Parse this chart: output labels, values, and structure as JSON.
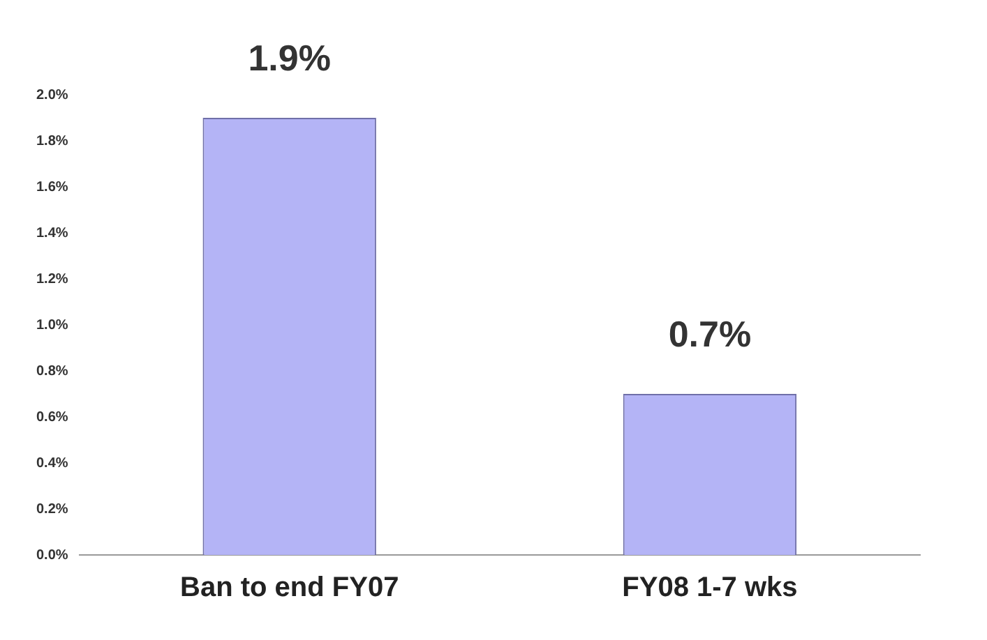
{
  "chart_data": {
    "type": "bar",
    "categories": [
      "Ban to end FY07",
      "FY08 1-7 wks"
    ],
    "values": [
      1.9,
      0.7
    ],
    "color": "#b4b4f6",
    "value_labels": [
      "1.9%",
      "0.7%"
    ],
    "ylim": [
      0,
      2
    ],
    "yticks": [
      {
        "value": 0,
        "label": "0.0%"
      },
      {
        "value": 0.2,
        "label": "0.2%"
      },
      {
        "value": 0.4,
        "label": "0.4%"
      },
      {
        "value": 0.6,
        "label": "0.6%"
      },
      {
        "value": 0.8,
        "label": "0.8%"
      },
      {
        "value": 1,
        "label": "1.0%"
      },
      {
        "value": 1.2,
        "label": "1.2%"
      },
      {
        "value": 1.4,
        "label": "1.4%"
      },
      {
        "value": 1.6,
        "label": "1.6%"
      },
      {
        "value": 1.8,
        "label": "1.8%"
      },
      {
        "value": 2,
        "label": "2.0%"
      }
    ]
  }
}
